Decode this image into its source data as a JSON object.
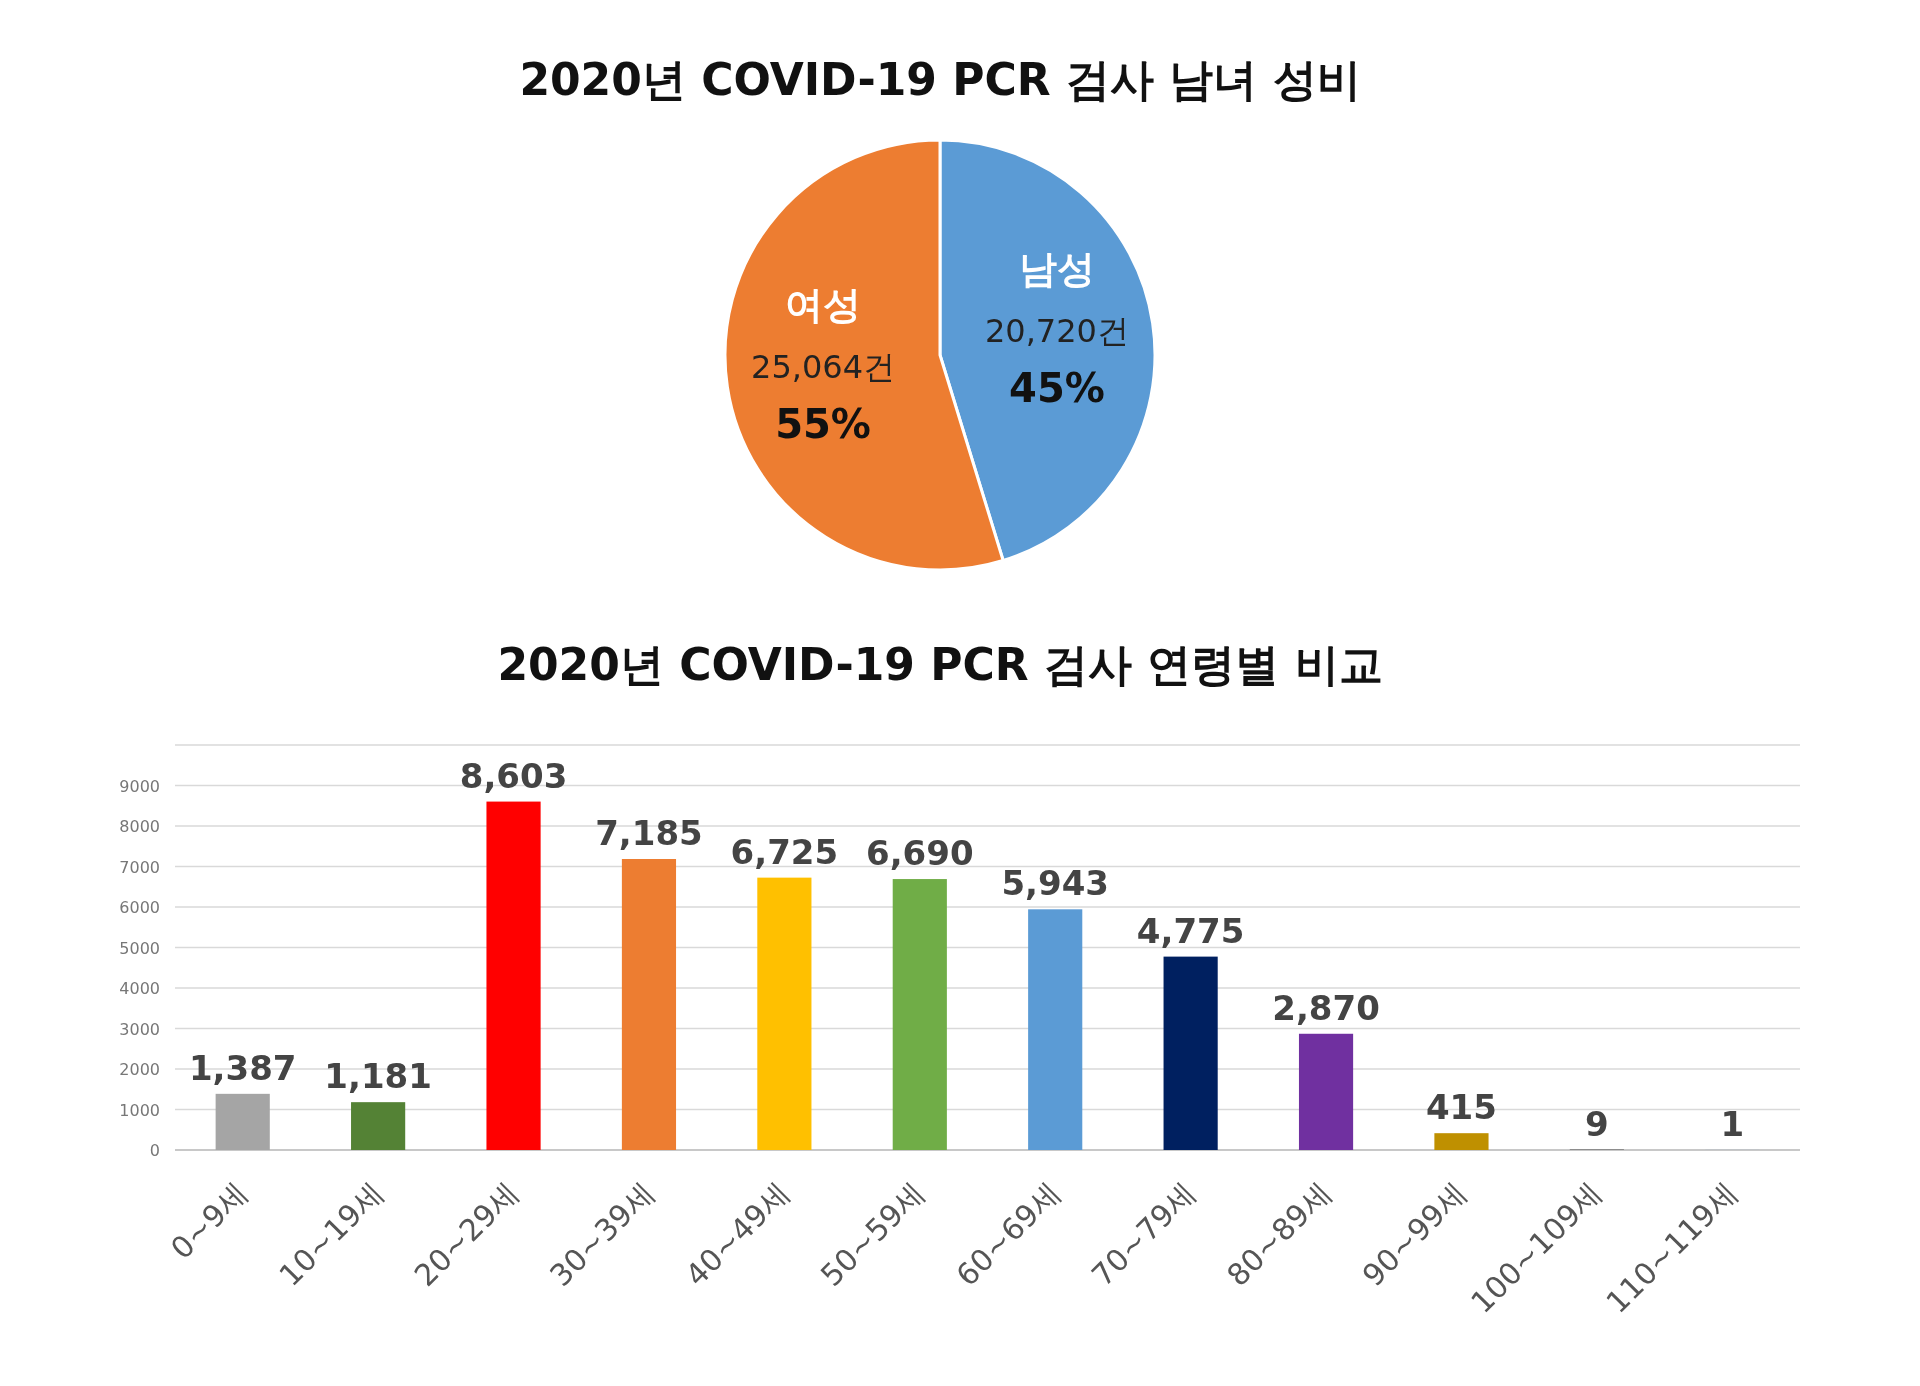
{
  "chart_data": [
    {
      "type": "pie",
      "title": "2020년 COVID-19 PCR 검사  남녀 성비",
      "categories": [
        "남성",
        "여성"
      ],
      "values": [
        20720,
        25064
      ],
      "colors": [
        "#5b9bd5",
        "#ed7d31"
      ],
      "value_labels": [
        "20,720건",
        "25,064건"
      ],
      "annotations": [
        {
          "text": "45%",
          "x": "남성"
        },
        {
          "text": "55%",
          "x": "여성"
        }
      ]
    },
    {
      "type": "bar",
      "title": "2020년 COVID-19 PCR 검사  연령별  비교",
      "categories": [
        "0~9세",
        "10~19세",
        "20~29세",
        "30~39세",
        "40~49세",
        "50~59세",
        "60~69세",
        "70~79세",
        "80~89세",
        "90~99세",
        "100~109세",
        "110~119세"
      ],
      "values": [
        1387,
        1181,
        8603,
        7185,
        6725,
        6690,
        5943,
        4775,
        2870,
        415,
        9,
        1
      ],
      "colors": [
        "#a5a5a5",
        "#548235",
        "#ff0000",
        "#ed7d31",
        "#ffc000",
        "#70ad47",
        "#5b9bd5",
        "#002060",
        "#7030a0",
        "#bf9000",
        "#262626",
        "#2e75b6"
      ],
      "value_labels": [
        "1,387",
        "1,181",
        "8,603",
        "7,185",
        "6,725",
        "6,690",
        "5,943",
        "4,775",
        "2,870",
        "415",
        "9",
        "1"
      ],
      "ylim": [
        0,
        10000
      ],
      "yticks": [
        0,
        1000,
        2000,
        3000,
        4000,
        5000,
        6000,
        7000,
        8000,
        9000,
        {
          "value": 10000,
          "label": null
        }
      ],
      "grid": "y"
    }
  ]
}
